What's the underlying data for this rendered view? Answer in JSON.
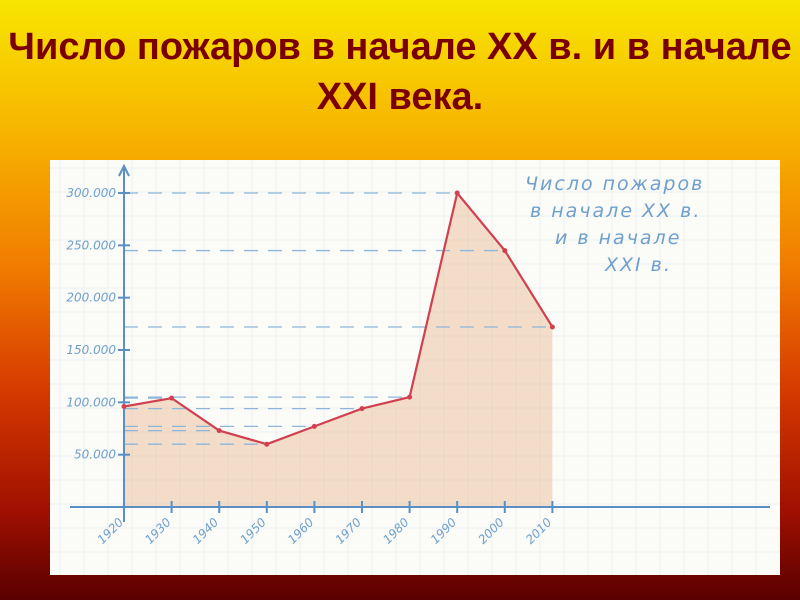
{
  "title": "Число пожаров  в начале ХХ в. и в начале XXI века.",
  "chart_data": {
    "type": "area",
    "title": "Число пожаров в начале ХХ в. и в начале XXI в.",
    "title_lines": [
      "Число пожаров",
      "в начале ХХ в.",
      "и в начале",
      "XXI в."
    ],
    "xlabel": "",
    "ylabel": "",
    "categories": [
      "1920",
      "1930",
      "1940",
      "1950",
      "1960",
      "1970",
      "1980",
      "1990",
      "2000",
      "2010"
    ],
    "values": [
      96000,
      104000,
      73000,
      60000,
      77000,
      94000,
      105000,
      300000,
      245000,
      172000
    ],
    "ylim": [
      0,
      300000
    ],
    "yticks": [
      "50.000",
      "100.000",
      "150.000",
      "200.000",
      "250.000",
      "300.000"
    ],
    "grid": true,
    "colors": {
      "line": "#d04050",
      "fill": "#e8b890",
      "axis": "#5b8fc4"
    }
  }
}
